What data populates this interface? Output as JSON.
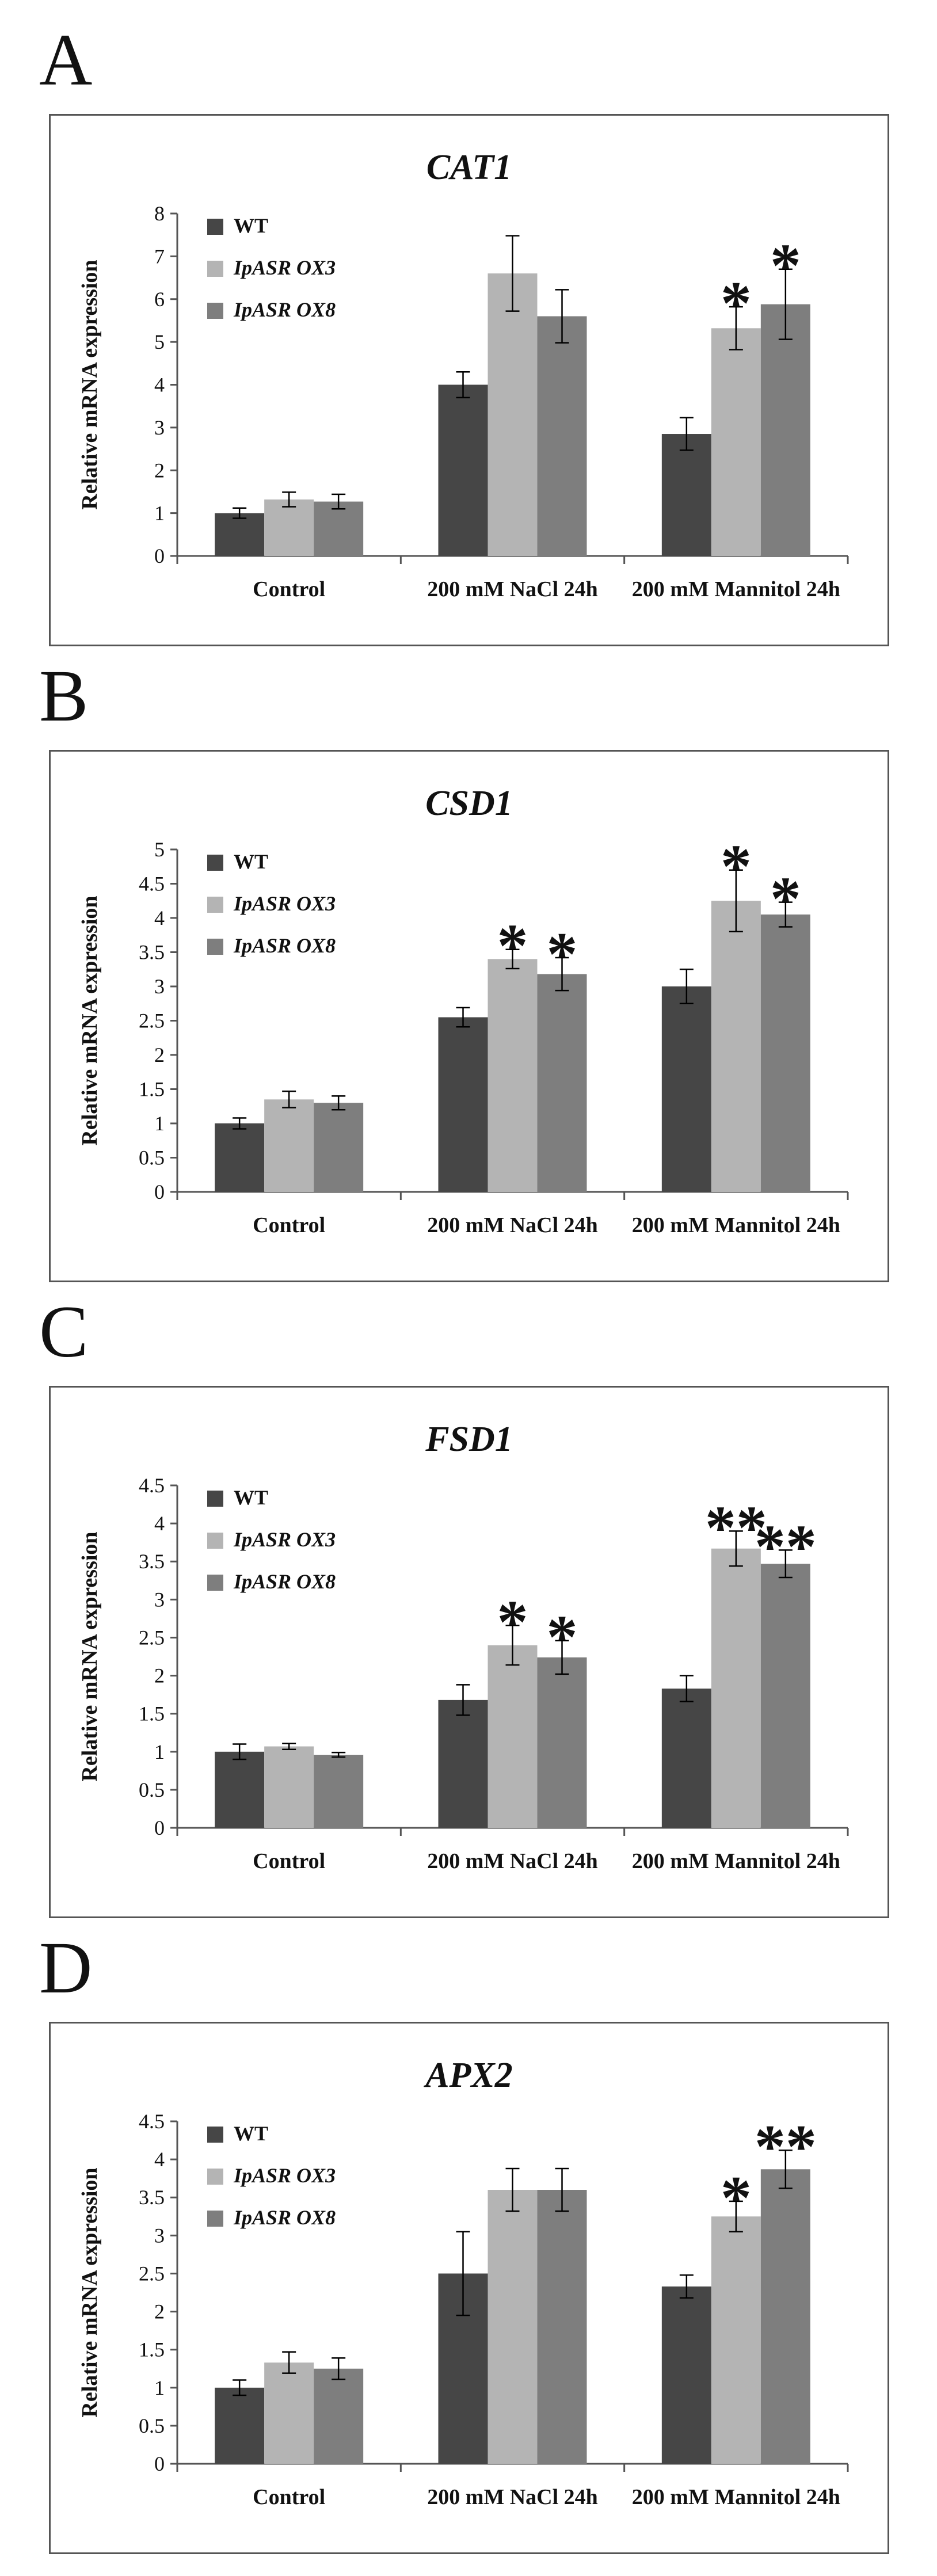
{
  "colors": {
    "WT": "#464646",
    "OX3": "#b4b4b4",
    "OX8": "#7e7e7e",
    "axis": "#555555"
  },
  "chart_data": [
    {
      "type": "bar",
      "panel": "A",
      "title": "CAT1",
      "ylabel": "Relative mRNA expression",
      "xlabel": "",
      "ylim": [
        0,
        8
      ],
      "yticks": [
        "0",
        "1",
        "2",
        "3",
        "4",
        "5",
        "6",
        "7",
        "8"
      ],
      "categories": [
        "Control",
        "200 mM NaCl 24h",
        "200 mM Mannitol 24h"
      ],
      "series": [
        {
          "name": "WT",
          "values": [
            1.0,
            4.0,
            2.85
          ],
          "errors": [
            0.12,
            0.3,
            0.38
          ]
        },
        {
          "name": "IpASR OX3",
          "values": [
            1.32,
            6.6,
            5.32
          ],
          "errors": [
            0.17,
            0.88,
            0.5
          ]
        },
        {
          "name": "IpASR OX8",
          "values": [
            1.27,
            5.6,
            5.88
          ],
          "errors": [
            0.17,
            0.62,
            0.82
          ]
        }
      ],
      "annotations": [
        [
          "",
          "",
          ""
        ],
        [
          "",
          "",
          ""
        ],
        [
          "",
          "*",
          "*"
        ]
      ]
    },
    {
      "type": "bar",
      "panel": "B",
      "title": "CSD1",
      "ylabel": "Relative mRNA expression",
      "xlabel": "",
      "ylim": [
        0,
        5
      ],
      "yticks": [
        "0",
        "0.5",
        "1",
        "1.5",
        "2",
        "2.5",
        "3",
        "3.5",
        "4",
        "4.5",
        "5"
      ],
      "categories": [
        "Control",
        "200 mM NaCl 24h",
        "200 mM Mannitol 24h"
      ],
      "series": [
        {
          "name": "WT",
          "values": [
            1.0,
            2.55,
            3.0
          ],
          "errors": [
            0.08,
            0.14,
            0.25
          ]
        },
        {
          "name": "IpASR OX3",
          "values": [
            1.35,
            3.4,
            4.25
          ],
          "errors": [
            0.12,
            0.14,
            0.45
          ]
        },
        {
          "name": "IpASR OX8",
          "values": [
            1.3,
            3.18,
            4.05
          ],
          "errors": [
            0.1,
            0.24,
            0.18
          ]
        }
      ],
      "annotations": [
        [
          "",
          "",
          ""
        ],
        [
          "",
          "*",
          "*"
        ],
        [
          "",
          "*",
          "*"
        ]
      ]
    },
    {
      "type": "bar",
      "panel": "C",
      "title": "FSD1",
      "ylabel": "Relative mRNA expression",
      "xlabel": "",
      "ylim": [
        0,
        4.5
      ],
      "yticks": [
        "0",
        "0.5",
        "1",
        "1.5",
        "2",
        "2.5",
        "3",
        "3.5",
        "4",
        "4.5"
      ],
      "categories": [
        "Control",
        "200 mM NaCl 24h",
        "200 mM Mannitol 24h"
      ],
      "series": [
        {
          "name": "WT",
          "values": [
            1.0,
            1.68,
            1.83
          ],
          "errors": [
            0.1,
            0.2,
            0.17
          ]
        },
        {
          "name": "IpASR OX3",
          "values": [
            1.07,
            2.4,
            3.67
          ],
          "errors": [
            0.04,
            0.26,
            0.23
          ]
        },
        {
          "name": "IpASR OX8",
          "values": [
            0.96,
            2.24,
            3.47
          ],
          "errors": [
            0.03,
            0.22,
            0.18
          ]
        }
      ],
      "annotations": [
        [
          "",
          "",
          ""
        ],
        [
          "",
          "*",
          "*"
        ],
        [
          "",
          "**",
          "**"
        ]
      ]
    },
    {
      "type": "bar",
      "panel": "D",
      "title": "APX2",
      "ylabel": "Relative mRNA expression",
      "xlabel": "",
      "ylim": [
        0,
        4.5
      ],
      "yticks": [
        "0",
        "0.5",
        "1",
        "1.5",
        "2",
        "2.5",
        "3",
        "3.5",
        "4",
        "4.5"
      ],
      "categories": [
        "Control",
        "200 mM NaCl 24h",
        "200 mM Mannitol 24h"
      ],
      "series": [
        {
          "name": "WT",
          "values": [
            1.0,
            2.5,
            2.33
          ],
          "errors": [
            0.1,
            0.55,
            0.15
          ]
        },
        {
          "name": "IpASR OX3",
          "values": [
            1.33,
            3.6,
            3.25
          ],
          "errors": [
            0.14,
            0.28,
            0.2
          ]
        },
        {
          "name": "IpASR OX8",
          "values": [
            1.25,
            3.6,
            3.87
          ],
          "errors": [
            0.14,
            0.28,
            0.25
          ]
        }
      ],
      "annotations": [
        [
          "",
          "",
          ""
        ],
        [
          "",
          "",
          ""
        ],
        [
          "",
          "*",
          "**"
        ]
      ]
    }
  ]
}
